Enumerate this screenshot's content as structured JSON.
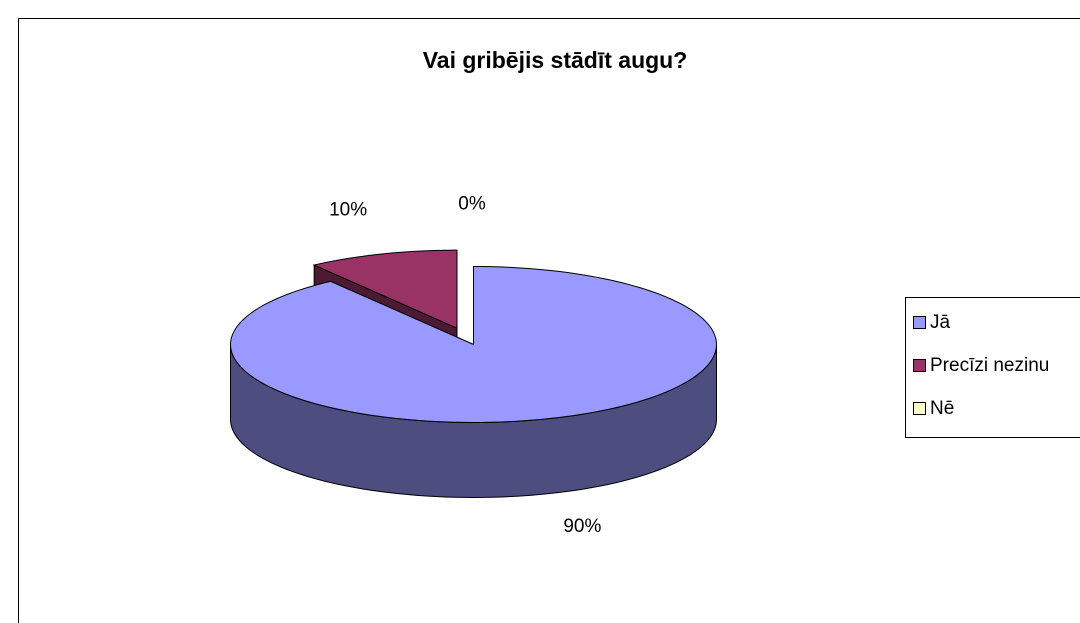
{
  "chart_data": {
    "type": "pie3d",
    "title": "Vai gribējis stādīt augu?",
    "categories": [
      "Jā",
      "Precīzi nezinu",
      "Nē"
    ],
    "values": [
      90,
      10,
      0
    ],
    "value_labels": [
      "90%",
      "10%",
      "0%"
    ],
    "colors": [
      "#9999ff",
      "#993366",
      "#ffffcc"
    ],
    "legend": "right"
  }
}
